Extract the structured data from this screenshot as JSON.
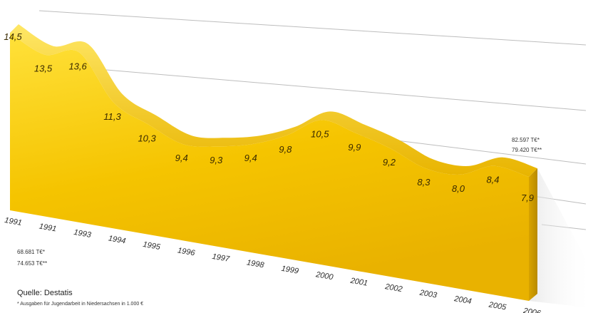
{
  "chart_data": {
    "type": "area",
    "title": "",
    "xlabel": "",
    "ylabel": "",
    "categories": [
      "1991",
      "1991",
      "1993",
      "1994",
      "1995",
      "1996",
      "1997",
      "1998",
      "1999",
      "2000",
      "2001",
      "2002",
      "2003",
      "2004",
      "2005",
      "2006"
    ],
    "value_labels": [
      "14,5",
      "13,5",
      "13,6",
      "11,3",
      "10,3",
      "9,4",
      "9,3",
      "9,4",
      "9,8",
      "10,5",
      "9,9",
      "9,2",
      "8,3",
      "8,0",
      "8,4",
      "7,9"
    ],
    "values": [
      14.5,
      13.5,
      13.6,
      11.3,
      10.3,
      9.4,
      9.3,
      9.4,
      9.8,
      10.5,
      9.9,
      9.2,
      8.3,
      8.0,
      8.4,
      7.9
    ],
    "grid": true,
    "colors": {
      "fill": "#f2c200",
      "fill_light": "#ffe24a",
      "top_face": "#ffd92e",
      "shadow": "#c99a00"
    }
  },
  "annotations": {
    "start_line1": "68.681 T€*",
    "start_line2": "74.653 T€**",
    "end_line1": "82.597 T€*",
    "end_line2": "79.420 T€**"
  },
  "source": "Quelle: Destatis",
  "footnote": "* Ausgaben für Jugendarbeit in Niedersachsen in 1.000 €"
}
